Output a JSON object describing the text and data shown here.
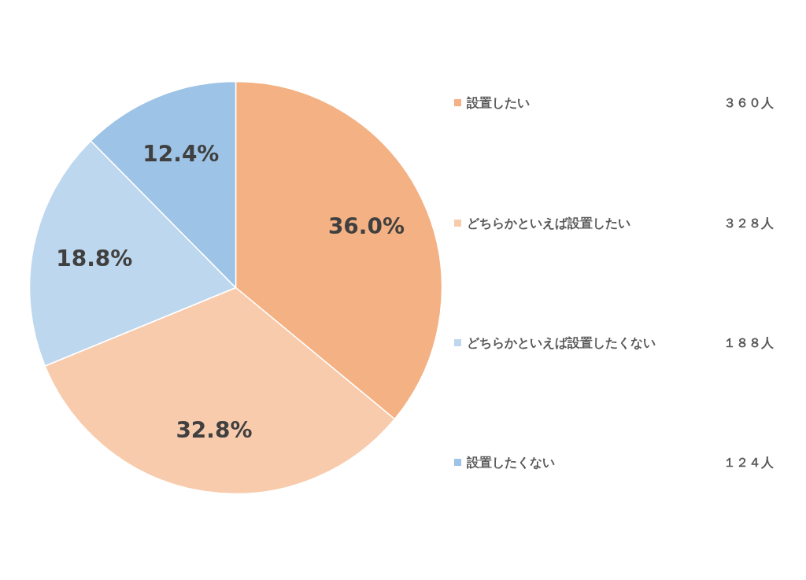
{
  "chart_data": {
    "type": "pie",
    "categories": [
      "設置したい",
      "どちらかといえば設置したい",
      "どちらかといえば設置したくない",
      "設置したくない"
    ],
    "values": [
      36.0,
      32.8,
      18.8,
      12.4
    ],
    "colors": [
      "#f4b183",
      "#f8cbad",
      "#bdd7ee",
      "#9dc3e6"
    ],
    "value_labels": [
      "36.0%",
      "32.8%",
      "18.8%",
      "12.4%"
    ],
    "annotations": [
      "３６０人",
      "３２８人",
      "１８８人",
      "１２４人"
    ],
    "legend": "right"
  }
}
